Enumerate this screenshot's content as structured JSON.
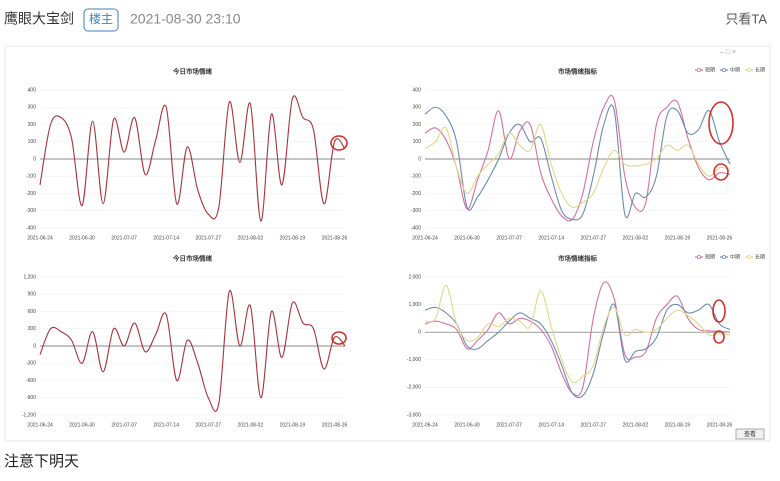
{
  "header": {
    "user": "鹰眼大宝剑",
    "badge": "楼主",
    "time": "2021-08-30 23:10",
    "only_ta": "只看TA"
  },
  "chart_data": [
    {
      "type": "line",
      "title": "今日市场情绪",
      "categories": [
        "2021-06-24",
        null,
        null,
        null,
        "2021-06-30",
        null,
        null,
        null,
        "2021-07-07",
        null,
        null,
        null,
        "2021-07-14",
        null,
        null,
        null,
        "2021-07-27",
        null,
        null,
        null,
        "2021-08-02",
        null,
        null,
        null,
        "2021-08-19",
        null,
        null,
        null,
        "2021-08-26",
        null
      ],
      "values": [
        -150,
        200,
        240,
        120,
        -270,
        220,
        -260,
        230,
        40,
        240,
        -90,
        110,
        300,
        -260,
        70,
        -180,
        -320,
        -280,
        330,
        -20,
        320,
        -360,
        260,
        -150,
        350,
        240,
        170,
        -260,
        100,
        60
      ],
      "color": "#a8323a",
      "ylim": [
        -400,
        400
      ],
      "yticks": [
        -400,
        -300,
        -200,
        -100,
        0,
        100,
        200,
        300,
        400
      ],
      "grid": true
    },
    {
      "type": "line",
      "title": "市场情绪指标",
      "categories": [
        "2021-06-24",
        null,
        null,
        null,
        "2021-06-30",
        null,
        null,
        null,
        "2021-07-07",
        null,
        null,
        null,
        "2021-07-14",
        null,
        null,
        null,
        "2021-07-27",
        null,
        null,
        null,
        "2021-08-02",
        null,
        null,
        null,
        "2021-08-19",
        null,
        null,
        null,
        "2021-08-26",
        null
      ],
      "series": [
        {
          "name": "短期",
          "color": "#d4709f",
          "values": [
            150,
            180,
            110,
            -50,
            -290,
            -120,
            50,
            280,
            0,
            160,
            200,
            -80,
            -230,
            -330,
            -350,
            -200,
            100,
            300,
            340,
            -100,
            -280,
            -250,
            200,
            300,
            330,
            120,
            -50,
            -120,
            -80,
            -90
          ]
        },
        {
          "name": "中期",
          "color": "#6b8bb0",
          "values": [
            260,
            300,
            250,
            100,
            -280,
            -220,
            -120,
            0,
            150,
            200,
            100,
            120,
            -100,
            -300,
            -350,
            -320,
            -100,
            200,
            280,
            -320,
            -200,
            -220,
            -100,
            250,
            280,
            150,
            170,
            280,
            100,
            -30
          ]
        },
        {
          "name": "长期",
          "color": "#e3d78a",
          "values": [
            60,
            100,
            180,
            -50,
            -200,
            -100,
            -30,
            30,
            150,
            80,
            50,
            200,
            -30,
            -200,
            -280,
            -250,
            -200,
            -50,
            50,
            -30,
            -40,
            -30,
            0,
            80,
            50,
            80,
            -30,
            -100,
            -50,
            -60
          ]
        }
      ],
      "ylim": [
        -400,
        400
      ],
      "yticks": [
        -400,
        -300,
        -200,
        -100,
        0,
        100,
        200,
        300,
        400
      ],
      "grid": true,
      "legend": "top-right"
    },
    {
      "type": "line",
      "title": "今日市场情绪",
      "categories": [
        "2021-06-24",
        null,
        null,
        null,
        "2021-06-30",
        null,
        null,
        null,
        "2021-07-07",
        null,
        null,
        null,
        "2021-07-14",
        null,
        null,
        null,
        "2021-07-27",
        null,
        null,
        null,
        "2021-08-02",
        null,
        null,
        null,
        "2021-08-19",
        null,
        null,
        null,
        "2021-08-26",
        null
      ],
      "values": [
        -150,
        300,
        250,
        100,
        -300,
        250,
        -450,
        300,
        0,
        400,
        -100,
        200,
        550,
        -600,
        100,
        -300,
        -900,
        -1000,
        950,
        0,
        700,
        -900,
        600,
        -200,
        750,
        400,
        300,
        -400,
        150,
        0
      ],
      "color": "#a8323a",
      "ylim": [
        -1200,
        1200
      ],
      "yticks": [
        {
          "value": -1200,
          "label": "-1,200"
        },
        -900,
        -600,
        -300,
        0,
        300,
        600,
        900,
        {
          "value": 1200,
          "label": "1,200"
        }
      ],
      "grid": true
    },
    {
      "type": "line",
      "title": "市场情绪指标",
      "categories": [
        "2021-06-24",
        null,
        null,
        null,
        "2021-06-30",
        null,
        null,
        null,
        "2021-07-07",
        null,
        null,
        null,
        "2021-07-14",
        null,
        null,
        null,
        "2021-07-27",
        null,
        null,
        null,
        "2021-08-02",
        null,
        null,
        null,
        "2021-08-19",
        null,
        null,
        null,
        "2021-08-26",
        null
      ],
      "series": [
        {
          "name": "短期",
          "color": "#d4709f",
          "values": [
            300,
            400,
            300,
            100,
            -600,
            -300,
            100,
            700,
            300,
            500,
            400,
            100,
            -500,
            -1500,
            -2200,
            -2000,
            500,
            1800,
            1200,
            -800,
            -900,
            -700,
            500,
            1000,
            1300,
            500,
            100,
            50,
            30,
            0
          ]
        },
        {
          "name": "中期",
          "color": "#6b8bb0",
          "values": [
            800,
            900,
            700,
            300,
            -500,
            -600,
            -300,
            0,
            400,
            700,
            500,
            300,
            -300,
            -1200,
            -2200,
            -2300,
            -1500,
            0,
            1000,
            -1000,
            -700,
            -600,
            -200,
            800,
            1000,
            700,
            800,
            1000,
            300,
            100
          ]
        },
        {
          "name": "长期",
          "color": "#e3d78a",
          "values": [
            400,
            500,
            1700,
            300,
            -300,
            -200,
            300,
            200,
            500,
            400,
            200,
            1500,
            200,
            -1000,
            -1800,
            -1600,
            -1200,
            200,
            900,
            -100,
            100,
            0,
            100,
            500,
            800,
            600,
            300,
            -100,
            -50,
            -100
          ]
        }
      ],
      "ylim": [
        -3000,
        2000
      ],
      "yticks": [
        {
          "value": -3000,
          "label": "-3,000"
        },
        {
          "value": -2000,
          "label": "-2,000"
        },
        {
          "value": -1000,
          "label": "-1,000"
        },
        0,
        {
          "value": 1000,
          "label": "1,000"
        },
        {
          "value": 2000,
          "label": "2,000"
        }
      ],
      "grid": true,
      "legend": "top-right"
    }
  ],
  "button": "查看",
  "body": "注意下明天"
}
